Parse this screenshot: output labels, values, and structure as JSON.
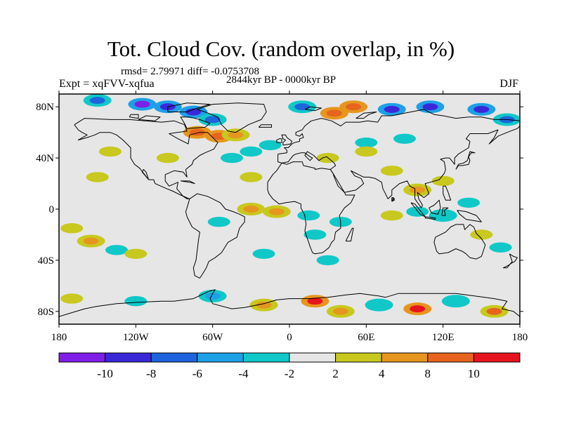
{
  "title": "Tot. Cloud Cov. (random overlap, in %)",
  "stats_line": "rmsd= 2.79971 diff= -0.0753708",
  "period_line": "2844kyr BP - 0000kyr BP",
  "experiment_label": "Expt = xqFVV-xqfua",
  "season_label": "DJF",
  "map": {
    "projection": "cylindrical-equidistant",
    "lon_range": [
      -180,
      180
    ],
    "lat_range": [
      -90,
      90
    ],
    "background_color": "#e6e6e6",
    "coastline_color": "#000000",
    "y_ticks": [
      {
        "lat": 80,
        "label": "80N"
      },
      {
        "lat": 40,
        "label": "40N"
      },
      {
        "lat": 0,
        "label": "0"
      },
      {
        "lat": -40,
        "label": "40S"
      },
      {
        "lat": -80,
        "label": "80S"
      }
    ],
    "x_ticks": [
      {
        "lon": -180,
        "label": "180"
      },
      {
        "lon": -120,
        "label": "120W"
      },
      {
        "lon": -60,
        "label": "60W"
      },
      {
        "lon": 0,
        "label": "0"
      },
      {
        "lon": 60,
        "label": "60E"
      },
      {
        "lon": 120,
        "label": "120E"
      },
      {
        "lon": 180,
        "label": "180"
      }
    ]
  },
  "colorbar": {
    "colors": [
      "#7f1ee6",
      "#3a28d8",
      "#1e64dc",
      "#1ea0e6",
      "#10c8c8",
      "#e6e6e6",
      "#c8c81e",
      "#e6961e",
      "#e6641e",
      "#e6141e"
    ],
    "tick_labels": [
      "-10",
      "-8",
      "-6",
      "-4",
      "-2",
      "2",
      "4",
      "8",
      "10"
    ]
  },
  "chart_data": {
    "type": "heatmap",
    "title": "Tot. Cloud Cov. (random overlap, in %)",
    "variable": "total cloud cover difference",
    "units": "%",
    "season": "DJF",
    "rmsd": 2.79971,
    "diff": -0.0753708,
    "levels": [
      -10,
      -8,
      -6,
      -4,
      -2,
      2,
      4,
      8,
      10
    ],
    "anomalies": [
      {
        "lon": -150,
        "lat": 85,
        "value": -8
      },
      {
        "lon": -115,
        "lat": 82,
        "value": -11
      },
      {
        "lon": -95,
        "lat": 80,
        "value": -10
      },
      {
        "lon": -75,
        "lat": 76,
        "value": -9
      },
      {
        "lon": -60,
        "lat": 70,
        "value": -7
      },
      {
        "lon": -72,
        "lat": 60,
        "value": 9
      },
      {
        "lon": -55,
        "lat": 57,
        "value": 9
      },
      {
        "lon": -42,
        "lat": 58,
        "value": 6
      },
      {
        "lon": -30,
        "lat": 45,
        "value": -3
      },
      {
        "lon": -45,
        "lat": 40,
        "value": -3
      },
      {
        "lon": -15,
        "lat": 50,
        "value": -3
      },
      {
        "lon": 35,
        "lat": 75,
        "value": 9
      },
      {
        "lon": 50,
        "lat": 80,
        "value": 9
      },
      {
        "lon": 80,
        "lat": 78,
        "value": -9
      },
      {
        "lon": 110,
        "lat": 80,
        "value": -10
      },
      {
        "lon": 150,
        "lat": 78,
        "value": -9
      },
      {
        "lon": 170,
        "lat": 70,
        "value": -8
      },
      {
        "lon": 10,
        "lat": 80,
        "value": -7
      },
      {
        "lon": 60,
        "lat": 52,
        "value": -3
      },
      {
        "lon": 90,
        "lat": 55,
        "value": -3
      },
      {
        "lon": 30,
        "lat": 40,
        "value": 3
      },
      {
        "lon": 60,
        "lat": 45,
        "value": 3
      },
      {
        "lon": 80,
        "lat": 30,
        "value": 3
      },
      {
        "lon": 100,
        "lat": 15,
        "value": 4
      },
      {
        "lon": 120,
        "lat": 22,
        "value": 3
      },
      {
        "lon": -150,
        "lat": 25,
        "value": 3
      },
      {
        "lon": -140,
        "lat": 45,
        "value": 3
      },
      {
        "lon": -95,
        "lat": 40,
        "value": 2
      },
      {
        "lon": -30,
        "lat": 25,
        "value": 3
      },
      {
        "lon": -30,
        "lat": 0,
        "value": 4
      },
      {
        "lon": -10,
        "lat": -2,
        "value": 5
      },
      {
        "lon": -55,
        "lat": -10,
        "value": -3
      },
      {
        "lon": 40,
        "lat": -10,
        "value": -3
      },
      {
        "lon": 20,
        "lat": -20,
        "value": -3
      },
      {
        "lon": 15,
        "lat": -5,
        "value": -3
      },
      {
        "lon": 80,
        "lat": -5,
        "value": 3
      },
      {
        "lon": 100,
        "lat": -2,
        "value": -3
      },
      {
        "lon": 120,
        "lat": -5,
        "value": -4
      },
      {
        "lon": 140,
        "lat": 5,
        "value": -3
      },
      {
        "lon": 150,
        "lat": -20,
        "value": 3
      },
      {
        "lon": 165,
        "lat": -30,
        "value": -3
      },
      {
        "lon": -170,
        "lat": -15,
        "value": 3
      },
      {
        "lon": -155,
        "lat": -25,
        "value": 5
      },
      {
        "lon": -135,
        "lat": -32,
        "value": -3
      },
      {
        "lon": -120,
        "lat": -35,
        "value": 3
      },
      {
        "lon": -20,
        "lat": -35,
        "value": -3
      },
      {
        "lon": 30,
        "lat": -40,
        "value": -3
      },
      {
        "lon": -170,
        "lat": -70,
        "value": 3
      },
      {
        "lon": -120,
        "lat": -72,
        "value": -3
      },
      {
        "lon": -60,
        "lat": -68,
        "value": -6
      },
      {
        "lon": -20,
        "lat": -75,
        "value": 5
      },
      {
        "lon": 20,
        "lat": -72,
        "value": 10
      },
      {
        "lon": 40,
        "lat": -80,
        "value": 4
      },
      {
        "lon": 70,
        "lat": -75,
        "value": -4
      },
      {
        "lon": 100,
        "lat": -78,
        "value": 10
      },
      {
        "lon": 130,
        "lat": -72,
        "value": -4
      },
      {
        "lon": 160,
        "lat": -80,
        "value": 8
      }
    ]
  }
}
